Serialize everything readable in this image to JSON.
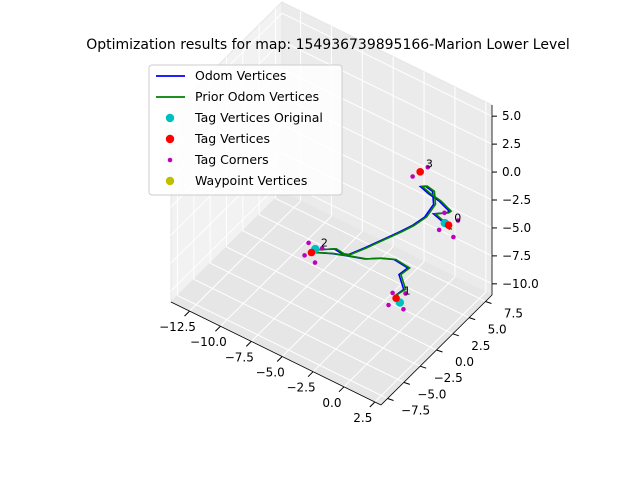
{
  "chart_data": {
    "type": "scatter",
    "projection": "3d",
    "title": "Optimization results for map: 154936739895166-Marion Lower Level",
    "xlabel": "",
    "ylabel": "",
    "zlabel": "",
    "grid": true,
    "legend_position": "top-left",
    "xlim": [
      -14,
      3
    ],
    "ylim": [
      -8.5,
      8.5
    ],
    "zlim": [
      -11,
      6
    ],
    "x_ticks": [
      -12.5,
      -10.0,
      -7.5,
      -5.0,
      -2.5,
      0.0,
      2.5
    ],
    "x_tick_labels": [
      "−12.5",
      "−10.0",
      "−7.5",
      "−5.0",
      "−2.5",
      "0.0",
      "2.5"
    ],
    "y_ticks": [
      -7.5,
      -5.0,
      -2.5,
      0.0,
      2.5,
      5.0,
      7.5
    ],
    "y_tick_labels": [
      "−7.5",
      "−5.0",
      "−2.5",
      "0.0",
      "2.5",
      "5.0",
      "7.5"
    ],
    "z_ticks": [
      -10.0,
      -7.5,
      -5.0,
      -2.5,
      0.0,
      2.5,
      5.0
    ],
    "z_tick_labels": [
      "−10.0",
      "−7.5",
      "−5.0",
      "−2.5",
      "0.0",
      "2.5",
      "5.0"
    ],
    "legend": [
      {
        "label": "Odom Vertices",
        "kind": "line",
        "color": "#0000ff"
      },
      {
        "label": "Prior Odom Vertices",
        "kind": "line",
        "color": "#008000"
      },
      {
        "label": "Tag Vertices Original",
        "kind": "marker",
        "color": "#00bfbf"
      },
      {
        "label": "Tag Vertices",
        "kind": "marker",
        "color": "#ff0000"
      },
      {
        "label": "Tag Corners",
        "kind": "marker-small",
        "color": "#bf00bf"
      },
      {
        "label": "Waypoint Vertices",
        "kind": "marker",
        "color": "#bfbf00"
      }
    ],
    "series": [
      {
        "name": "Odom Vertices",
        "color": "#0000ff",
        "points": [
          [
            -1.0,
            1.0,
            -9.0
          ],
          [
            -0.5,
            1.6,
            -8.4
          ],
          [
            -1.2,
            2.2,
            -7.8
          ],
          [
            -0.6,
            2.4,
            -7.0
          ],
          [
            -1.5,
            2.0,
            -6.5
          ],
          [
            -2.2,
            1.2,
            -6.3
          ],
          [
            -2.8,
            0.0,
            -6.0
          ],
          [
            -3.6,
            -1.0,
            -5.6
          ],
          [
            -4.5,
            -1.8,
            -5.4
          ],
          [
            -5.5,
            -2.4,
            -5.5
          ],
          [
            -6.2,
            -2.0,
            -5.9
          ],
          [
            -5.8,
            -1.0,
            -6.2
          ],
          [
            -5.0,
            -0.5,
            -6.0
          ],
          [
            -4.0,
            -1.2,
            -5.5
          ],
          [
            -3.2,
            -1.8,
            -4.8
          ],
          [
            -2.2,
            -1.2,
            -4.0
          ],
          [
            -1.2,
            -0.4,
            -3.2
          ],
          [
            -0.2,
            0.4,
            -2.4
          ],
          [
            0.5,
            1.0,
            -1.8
          ],
          [
            1.2,
            1.6,
            -1.0
          ],
          [
            1.6,
            2.2,
            0.0
          ],
          [
            1.2,
            2.8,
            0.6
          ],
          [
            0.4,
            3.2,
            0.4
          ],
          [
            -0.2,
            3.6,
            -0.2
          ],
          [
            0.2,
            4.0,
            -0.8
          ],
          [
            1.0,
            4.2,
            -1.2
          ],
          [
            1.6,
            4.6,
            -2.0
          ],
          [
            1.2,
            5.0,
            -2.6
          ],
          [
            0.4,
            5.2,
            -3.2
          ],
          [
            -0.2,
            5.6,
            -3.8
          ],
          [
            0.2,
            6.0,
            -4.4
          ],
          [
            0.8,
            6.2,
            -5.0
          ]
        ]
      },
      {
        "name": "Prior Odom Vertices",
        "color": "#008000",
        "points": [
          [
            -1.0,
            1.1,
            -9.0
          ],
          [
            -0.4,
            1.7,
            -8.4
          ],
          [
            -1.1,
            2.3,
            -7.8
          ],
          [
            -0.5,
            2.5,
            -7.0
          ],
          [
            -1.4,
            2.1,
            -6.5
          ],
          [
            -2.1,
            1.3,
            -6.3
          ],
          [
            -2.7,
            0.1,
            -6.0
          ],
          [
            -3.5,
            -0.9,
            -5.6
          ],
          [
            -4.4,
            -1.7,
            -5.4
          ],
          [
            -5.4,
            -2.3,
            -5.5
          ],
          [
            -6.1,
            -1.9,
            -5.9
          ],
          [
            -5.7,
            -0.9,
            -6.2
          ],
          [
            -4.9,
            -0.4,
            -6.0
          ],
          [
            -3.9,
            -1.1,
            -5.5
          ],
          [
            -3.1,
            -1.7,
            -4.8
          ],
          [
            -2.1,
            -1.1,
            -4.0
          ],
          [
            -1.1,
            -0.3,
            -3.2
          ],
          [
            -0.1,
            0.5,
            -2.4
          ],
          [
            0.6,
            1.1,
            -1.8
          ],
          [
            1.3,
            1.7,
            -1.0
          ],
          [
            1.7,
            2.3,
            0.0
          ],
          [
            1.3,
            2.9,
            0.6
          ],
          [
            0.5,
            3.3,
            0.4
          ],
          [
            -0.1,
            3.7,
            -0.2
          ],
          [
            0.3,
            4.1,
            -0.8
          ],
          [
            1.1,
            4.3,
            -1.2
          ],
          [
            1.7,
            4.7,
            -2.0
          ],
          [
            1.3,
            5.1,
            -2.6
          ],
          [
            0.5,
            5.3,
            -3.2
          ],
          [
            -0.1,
            5.7,
            -3.8
          ],
          [
            0.3,
            6.1,
            -4.4
          ],
          [
            0.9,
            6.3,
            -5.0
          ]
        ]
      },
      {
        "name": "Tag Vertices Original",
        "color": "#00bfbf",
        "points": [
          [
            -0.6,
            1.2,
            -9.4
          ],
          [
            -5.6,
            -2.3,
            -5.3
          ],
          [
            1.4,
            4.3,
            -3.0
          ]
        ]
      },
      {
        "name": "Tag Vertices",
        "color": "#ff0000",
        "points": [
          [
            -0.8,
            1.0,
            -9.0
          ],
          [
            -5.8,
            -2.5,
            -5.6
          ],
          [
            1.6,
            4.5,
            -3.2
          ],
          [
            0.2,
            2.8,
            1.8
          ]
        ]
      },
      {
        "name": "Tag Corners",
        "color": "#bf00bf",
        "points": [
          [
            -1.2,
            0.6,
            -9.6
          ],
          [
            -0.3,
            1.5,
            -8.6
          ],
          [
            -1.4,
            1.6,
            -9.2
          ],
          [
            -0.1,
            0.8,
            -9.5
          ],
          [
            -6.2,
            -2.8,
            -5.9
          ],
          [
            -5.2,
            -2.0,
            -5.2
          ],
          [
            -6.3,
            -2.0,
            -5.3
          ],
          [
            -5.3,
            -2.9,
            -6.0
          ],
          [
            1.1,
            4.0,
            -3.6
          ],
          [
            2.1,
            5.0,
            -2.8
          ],
          [
            1.0,
            5.0,
            -2.7
          ],
          [
            2.2,
            4.1,
            -3.7
          ],
          [
            -0.2,
            2.4,
            1.4
          ],
          [
            0.6,
            3.2,
            2.2
          ]
        ]
      },
      {
        "name": "Waypoint Vertices",
        "color": "#bfbf00",
        "points": []
      }
    ],
    "tag_labels": [
      {
        "text": "1",
        "point": [
          -0.4,
          1.4,
          -8.7
        ]
      },
      {
        "text": "2",
        "point": [
          -5.3,
          -2.0,
          -5.1
        ]
      },
      {
        "text": "0",
        "point": [
          1.9,
          4.8,
          -2.9
        ]
      },
      {
        "text": "3",
        "point": [
          0.5,
          3.1,
          2.2
        ]
      }
    ]
  }
}
